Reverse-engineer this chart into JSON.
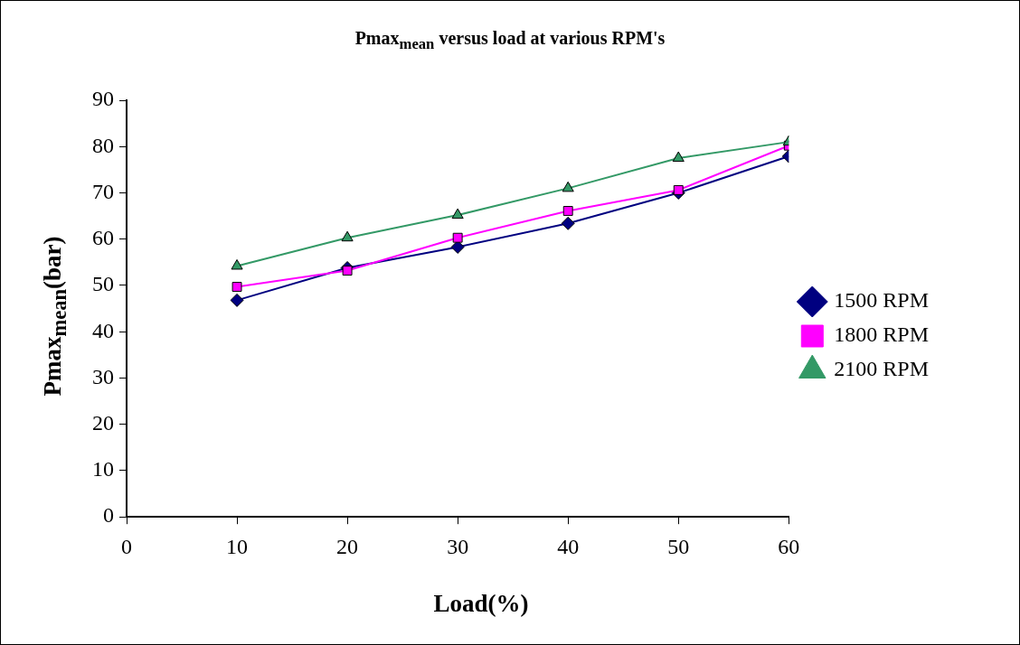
{
  "chart_data": {
    "type": "line",
    "title": "Pmax$_{mean}$ versus load at various RPM's",
    "xlabel": "Load(%)",
    "ylabel": "Pmax$_{mean}$(bar)",
    "x": [
      10,
      20,
      30,
      40,
      50,
      60
    ],
    "xlim": [
      0,
      60
    ],
    "xticks": [
      0,
      10,
      20,
      30,
      40,
      50,
      60
    ],
    "ylim": [
      0,
      90
    ],
    "yticks": [
      0,
      10,
      20,
      30,
      40,
      50,
      60,
      70,
      80,
      90
    ],
    "grid": false,
    "legend": "right",
    "series": [
      {
        "name": "1500 RPM",
        "color": "#000080",
        "marker": "diamond",
        "values": [
          46.8,
          53.8,
          58.3,
          63.4,
          70.0,
          77.9
        ]
      },
      {
        "name": "1800 RPM",
        "color": "#ff00ff",
        "marker": "square",
        "values": [
          49.7,
          53.2,
          60.3,
          66.1,
          70.6,
          80.2
        ]
      },
      {
        "name": "2100 RPM",
        "color": "#339966",
        "marker": "triangle",
        "values": [
          54.2,
          60.3,
          65.2,
          71.0,
          77.5,
          81.0
        ]
      }
    ]
  }
}
